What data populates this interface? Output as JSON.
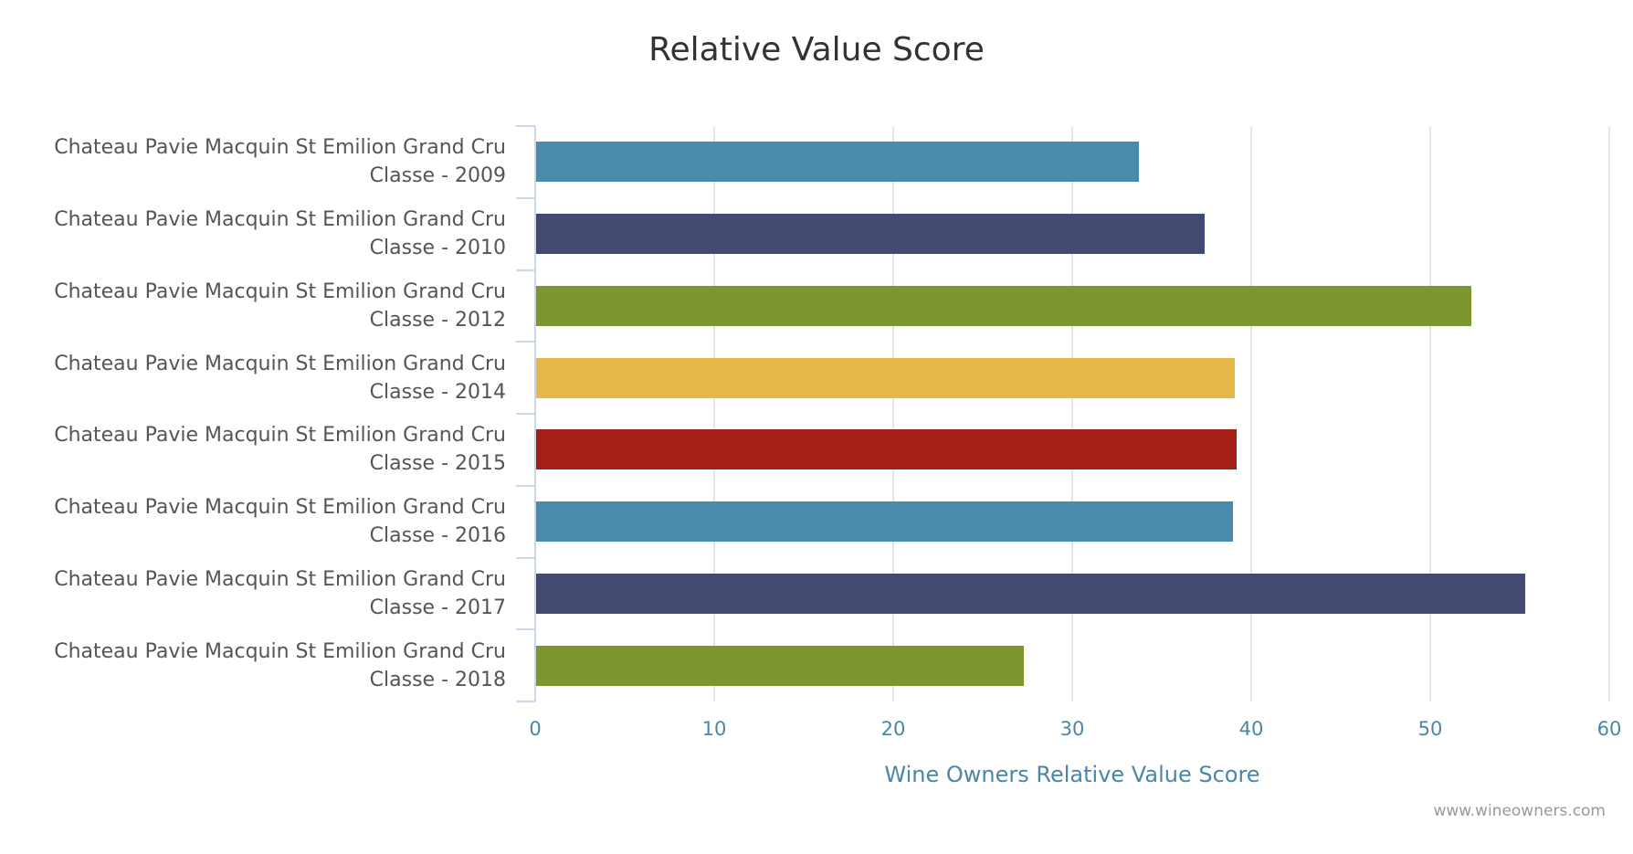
{
  "chart_data": {
    "type": "bar",
    "orientation": "horizontal",
    "title": "Relative Value Score",
    "xlabel": "Wine Owners Relative Value Score",
    "ylabel": "",
    "xlim": [
      0,
      60
    ],
    "xticks": [
      "0",
      "10",
      "20",
      "30",
      "40",
      "50",
      "60"
    ],
    "grid": true,
    "legend": null,
    "categories": [
      "Chateau Pavie Macquin St Emilion Grand Cru Classe - 2009",
      "Chateau Pavie Macquin St Emilion Grand Cru Classe - 2010",
      "Chateau Pavie Macquin St Emilion Grand Cru Classe - 2012",
      "Chateau Pavie Macquin St Emilion Grand Cru Classe - 2014",
      "Chateau Pavie Macquin St Emilion Grand Cru Classe - 2015",
      "Chateau Pavie Macquin St Emilion Grand Cru Classe - 2016",
      "Chateau Pavie Macquin St Emilion Grand Cru Classe - 2017",
      "Chateau Pavie Macquin St Emilion Grand Cru Classe - 2018"
    ],
    "values": [
      33.7,
      37.4,
      52.3,
      39.1,
      39.2,
      39.0,
      55.3,
      27.3
    ],
    "colors": [
      "#4a8bac",
      "#434a72",
      "#7d962e",
      "#e6b84a",
      "#a51f18",
      "#4a8bac",
      "#434a72",
      "#7d962e"
    ],
    "credits": "www.wineowners.com"
  },
  "labels": [
    {
      "line1": "Chateau Pavie Macquin St Emilion Grand Cru",
      "line2": "Classe - 2009"
    },
    {
      "line1": "Chateau Pavie Macquin St Emilion Grand Cru",
      "line2": "Classe - 2010"
    },
    {
      "line1": "Chateau Pavie Macquin St Emilion Grand Cru",
      "line2": "Classe - 2012"
    },
    {
      "line1": "Chateau Pavie Macquin St Emilion Grand Cru",
      "line2": "Classe - 2014"
    },
    {
      "line1": "Chateau Pavie Macquin St Emilion Grand Cru",
      "line2": "Classe - 2015"
    },
    {
      "line1": "Chateau Pavie Macquin St Emilion Grand Cru",
      "line2": "Classe - 2016"
    },
    {
      "line1": "Chateau Pavie Macquin St Emilion Grand Cru",
      "line2": "Classe - 2017"
    },
    {
      "line1": "Chateau Pavie Macquin St Emilion Grand Cru",
      "line2": "Classe - 2018"
    }
  ]
}
